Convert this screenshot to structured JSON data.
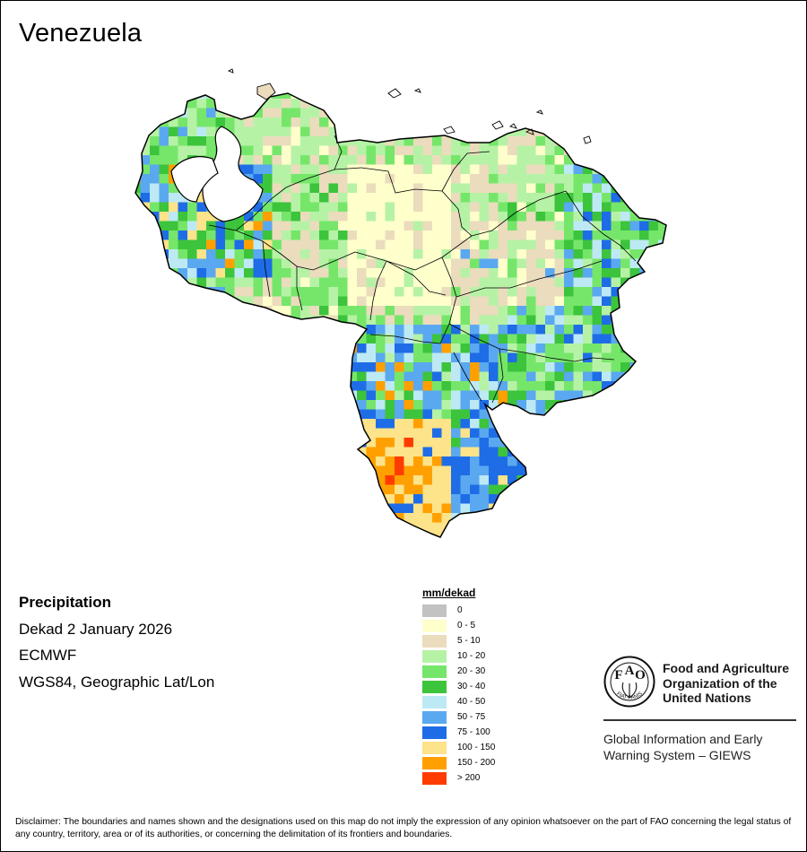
{
  "map": {
    "title": "Venezuela",
    "info": {
      "variable": "Precipitation",
      "period": "Dekad 2 January 2026",
      "source": "ECMWF",
      "projection": "WGS84, Geographic Lat/Lon"
    },
    "legend": {
      "title": "mm/dekad",
      "classes": [
        {
          "label": "0",
          "color": "#c2c2c2"
        },
        {
          "label": "0 - 5",
          "color": "#ffffcc"
        },
        {
          "label": "5 - 10",
          "color": "#eadcbc"
        },
        {
          "label": "10 - 20",
          "color": "#b6f2a6"
        },
        {
          "label": "20 - 30",
          "color": "#76e66a"
        },
        {
          "label": "30 - 40",
          "color": "#3cc43c"
        },
        {
          "label": "40 - 50",
          "color": "#bde9f5"
        },
        {
          "label": "50 - 75",
          "color": "#5aa8f0"
        },
        {
          "label": "75 - 100",
          "color": "#1e6de6"
        },
        {
          "label": "100 - 150",
          "color": "#fde389"
        },
        {
          "label": "150 - 200",
          "color": "#ffa000"
        },
        {
          "label": "> 200",
          "color": "#ff3c00"
        }
      ]
    },
    "organization": {
      "name_lines": [
        "Food and Agriculture",
        "Organization of the",
        "United Nations"
      ],
      "logo_letters": [
        "F",
        "A",
        "O"
      ],
      "logo_motto": "FIAT PANIS",
      "program_lines": [
        "Global Information and Early",
        "Warning System – GIEWS"
      ]
    },
    "disclaimer": "Disclaimer: The boundaries and names shown and the designations used on this map do not imply the expression of any opinion whatsoever on the part of FAO concerning the legal status of any country, territory, area or of its authorities, or concerning the delimitation of its frontiers and boundaries."
  }
}
